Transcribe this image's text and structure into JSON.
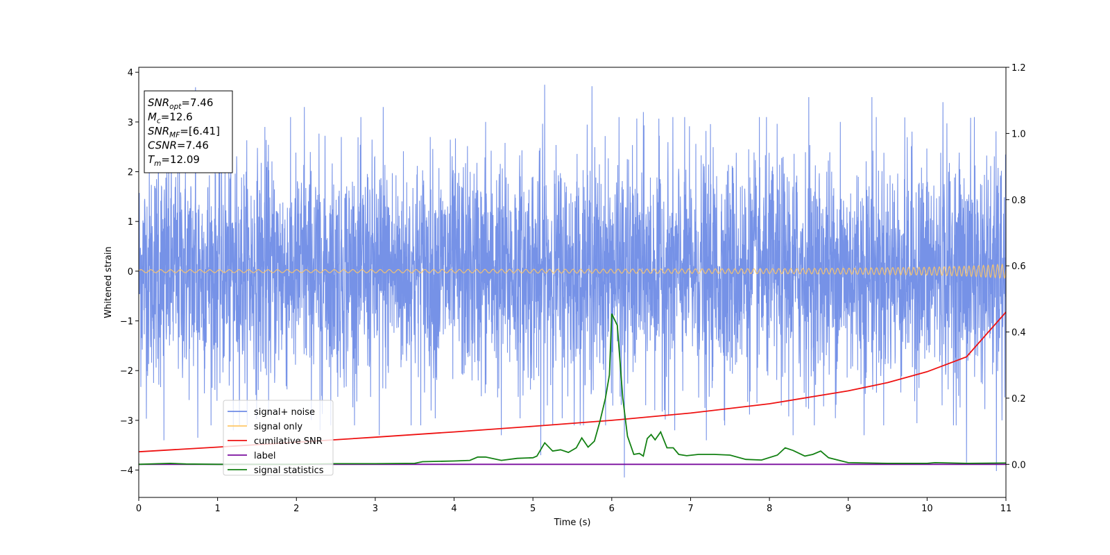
{
  "chart_data": {
    "type": "line",
    "xlabel": "Time (s)",
    "ylabel": "Whitened strain",
    "xlim": [
      0,
      11
    ],
    "ylim": [
      -4.55,
      4.1
    ],
    "y2lim": [
      -0.1,
      1.2
    ],
    "xticks": [
      0,
      1,
      2,
      3,
      4,
      5,
      6,
      7,
      8,
      9,
      10,
      11
    ],
    "yticks": [
      -4,
      -3,
      -2,
      -1,
      0,
      1,
      2,
      3,
      4
    ],
    "y2ticks": [
      0.0,
      0.2,
      0.4,
      0.6,
      0.8,
      1.0,
      1.2
    ],
    "legend_position": "lower-left",
    "annotation": [
      {
        "var": "SNR",
        "sub": "opt",
        "value": "=7.46"
      },
      {
        "var": "M",
        "sub": "c",
        "value": "=12.6"
      },
      {
        "var": "SNR",
        "sub": "MF",
        "value": "=[6.41]"
      },
      {
        "var": "CSNR",
        "sub": "",
        "value": "=7.46"
      },
      {
        "var": "T",
        "sub": "m",
        "value": "=12.09"
      }
    ],
    "series": [
      {
        "name": "signal+ noise",
        "color": "#6f8ce6",
        "axis": "left",
        "kind": "noise",
        "x": [
          0,
          1,
          2,
          3,
          4,
          5,
          6,
          7,
          8,
          9,
          10,
          11
        ],
        "band_upper": [
          2.0,
          2.0,
          2.0,
          2.0,
          2.0,
          2.0,
          2.0,
          2.0,
          2.0,
          2.0,
          2.0,
          2.0
        ],
        "band_lower": [
          -2.0,
          -2.0,
          -2.0,
          -2.0,
          -2.0,
          -2.0,
          -2.0,
          -2.0,
          -2.0,
          -2.0,
          -2.0,
          -2.0
        ],
        "peaks": [
          {
            "x": 0.72,
            "y": 3.7
          },
          {
            "x": 5.15,
            "y": 3.75
          },
          {
            "x": 5.75,
            "y": 3.72
          },
          {
            "x": 3.1,
            "y": 3.3
          },
          {
            "x": 9.3,
            "y": 3.5
          },
          {
            "x": 2.1,
            "y": 3.3
          },
          {
            "x": 8.5,
            "y": 3.5
          },
          {
            "x": 10.2,
            "y": 3.4
          },
          {
            "x": 6.4,
            "y": 3.2
          },
          {
            "x": 7.2,
            "y": 3.1
          },
          {
            "x": 0.25,
            "y": 3.2
          },
          {
            "x": 4.4,
            "y": 3.0
          },
          {
            "x": 10.6,
            "y": 3.1
          },
          {
            "x": 1.6,
            "y": 2.9
          },
          {
            "x": 8.9,
            "y": 3.0
          }
        ],
        "troughs": [
          {
            "x": 6.16,
            "y": -4.15
          },
          {
            "x": 10.88,
            "y": -4.02
          },
          {
            "x": 10.5,
            "y": -3.85
          },
          {
            "x": 0.32,
            "y": -3.4
          },
          {
            "x": 3.05,
            "y": -3.3
          },
          {
            "x": 0.75,
            "y": -3.35
          },
          {
            "x": 2.3,
            "y": -3.2
          },
          {
            "x": 6.8,
            "y": -3.2
          },
          {
            "x": 7.2,
            "y": -3.4
          },
          {
            "x": 4.6,
            "y": -3.3
          },
          {
            "x": 5.1,
            "y": -3.7
          },
          {
            "x": 8.3,
            "y": -3.3
          },
          {
            "x": 9.2,
            "y": -3.3
          },
          {
            "x": 1.2,
            "y": -3.2
          },
          {
            "x": 10.95,
            "y": -3.0
          }
        ]
      },
      {
        "name": "signal only",
        "color": "#ffc766",
        "axis": "left",
        "kind": "chirp",
        "x": [
          0,
          2,
          4,
          6,
          8,
          9,
          10,
          10.5,
          11
        ],
        "amplitude": [
          0.03,
          0.03,
          0.035,
          0.04,
          0.05,
          0.06,
          0.08,
          0.1,
          0.14
        ]
      },
      {
        "name": "cumilative SNR",
        "color": "#ee1111",
        "axis": "right",
        "kind": "line",
        "x": [
          0,
          1,
          2,
          3,
          4,
          5,
          6,
          7,
          8,
          9,
          9.5,
          10,
          10.5,
          11
        ],
        "values": [
          0.038,
          0.052,
          0.067,
          0.082,
          0.098,
          0.115,
          0.133,
          0.155,
          0.183,
          0.222,
          0.247,
          0.28,
          0.325,
          0.46
        ]
      },
      {
        "name": "label",
        "color": "#7a0d9e",
        "axis": "right",
        "kind": "line",
        "x": [
          0,
          11
        ],
        "values": [
          0.0,
          0.0
        ]
      },
      {
        "name": "signal statistics",
        "color": "#128012",
        "axis": "right",
        "kind": "line",
        "x": [
          0,
          0.4,
          0.6,
          1.0,
          1.5,
          2.0,
          2.5,
          3.0,
          3.5,
          3.6,
          4.0,
          4.2,
          4.3,
          4.4,
          4.6,
          4.8,
          5.0,
          5.05,
          5.15,
          5.25,
          5.35,
          5.45,
          5.55,
          5.62,
          5.7,
          5.78,
          5.85,
          5.92,
          5.97,
          6.0,
          6.07,
          6.14,
          6.2,
          6.28,
          6.35,
          6.4,
          6.45,
          6.5,
          6.55,
          6.62,
          6.7,
          6.78,
          6.85,
          6.95,
          7.1,
          7.3,
          7.5,
          7.7,
          7.9,
          8.1,
          8.2,
          8.3,
          8.45,
          8.55,
          8.65,
          8.75,
          9.0,
          9.5,
          10.0,
          10.1,
          10.5,
          11.0
        ],
        "values": [
          0.0,
          0.003,
          0.001,
          0.0,
          0.0,
          0.0,
          0.002,
          0.002,
          0.003,
          0.008,
          0.01,
          0.012,
          0.022,
          0.022,
          0.012,
          0.018,
          0.02,
          0.025,
          0.065,
          0.04,
          0.044,
          0.036,
          0.05,
          0.08,
          0.052,
          0.07,
          0.13,
          0.2,
          0.27,
          0.455,
          0.42,
          0.2,
          0.085,
          0.03,
          0.033,
          0.025,
          0.078,
          0.09,
          0.074,
          0.098,
          0.05,
          0.05,
          0.03,
          0.026,
          0.03,
          0.03,
          0.028,
          0.015,
          0.013,
          0.028,
          0.05,
          0.042,
          0.025,
          0.03,
          0.04,
          0.02,
          0.005,
          0.003,
          0.003,
          0.005,
          0.003,
          0.004
        ]
      }
    ]
  }
}
